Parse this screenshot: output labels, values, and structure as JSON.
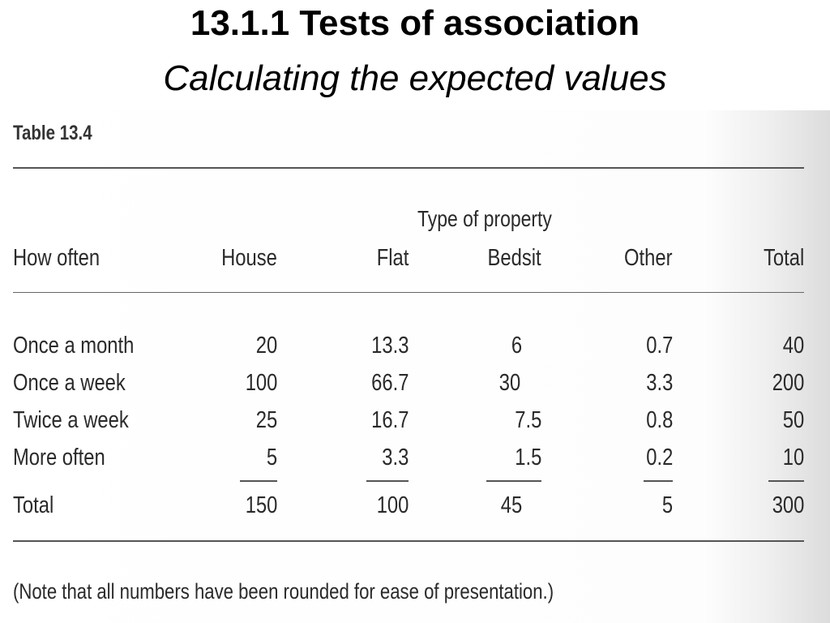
{
  "slide": {
    "title": "13.1.1 Tests of association",
    "subtitle": "Calculating the expected values"
  },
  "table": {
    "label": "Table 13.4",
    "spanner": "Type of property",
    "headers": [
      "How often",
      "House",
      "Flat",
      "Bedsit",
      "Other",
      "Total"
    ],
    "rows": [
      [
        "Once a month",
        "20",
        "13.3",
        "6",
        "0.7",
        "40"
      ],
      [
        "Once a week",
        "100",
        "66.7",
        "30",
        "3.3",
        "200"
      ],
      [
        "Twice a week",
        "25",
        "16.7",
        "7.5",
        "0.8",
        "50"
      ],
      [
        "More often",
        "5",
        "3.3",
        "1.5",
        "0.2",
        "10"
      ]
    ],
    "total_row": [
      "Total",
      "150",
      "100",
      "45",
      "5",
      "300"
    ],
    "note": "(Note that all numbers have been rounded for ease of presentation.)"
  }
}
